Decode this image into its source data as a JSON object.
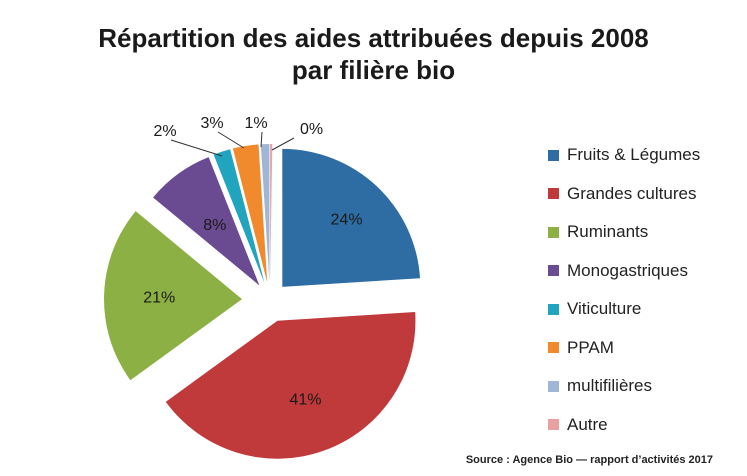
{
  "chart_data": {
    "type": "pie",
    "title": "Répartition des aides attribuées depuis 2008",
    "subtitle": "par filière bio",
    "legend_position": "right",
    "categories": [
      "Fruits & Légumes",
      "Grandes cultures",
      "Ruminants",
      "Monogastriques",
      "Viticulture",
      "PPAM",
      "multifilières",
      "Autre"
    ],
    "values": [
      24,
      41,
      21,
      8,
      2,
      3,
      1,
      0
    ],
    "data_labels": [
      "24%",
      "41%",
      "21%",
      "8%",
      "2%",
      "3%",
      "1%",
      "0%"
    ],
    "colors": [
      "#2e6da4",
      "#c0393b",
      "#8cb043",
      "#6a4a91",
      "#21a4bd",
      "#f08a2c",
      "#9fb6d6",
      "#e9a0a0"
    ]
  },
  "source": "Source : Agence Bio — rapport d’activités 2017"
}
